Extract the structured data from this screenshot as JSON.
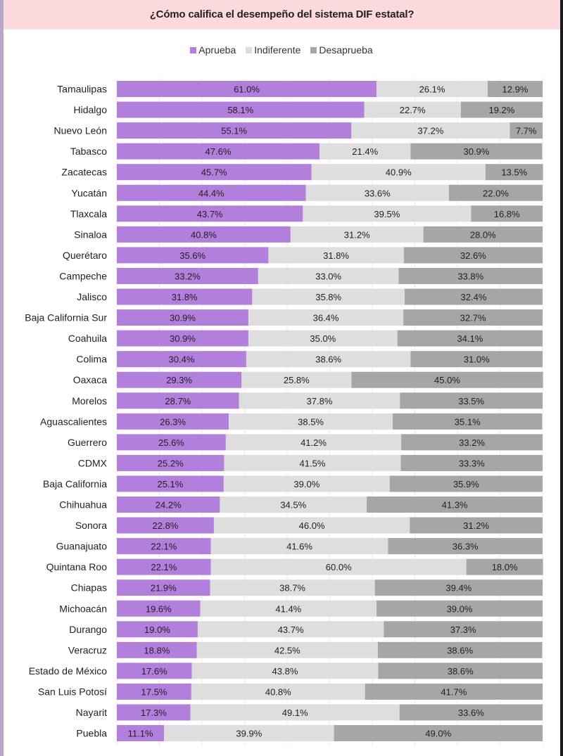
{
  "chart_data": {
    "type": "bar",
    "orientation": "horizontal",
    "stacked": true,
    "title": "¿Cómo califica el desempeño del sistema DIF estatal?",
    "xlabel": "",
    "ylabel": "",
    "xlim": [
      0,
      100
    ],
    "grid": true,
    "legend_position": "top-center",
    "unit": "%",
    "categories": [
      "Tamaulipas",
      "Hidalgo",
      "Nuevo León",
      "Tabasco",
      "Zacatecas",
      "Yucatán",
      "Tlaxcala",
      "Sinaloa",
      "Querétaro",
      "Campeche",
      "Jalisco",
      "Baja California Sur",
      "Coahuila",
      "Colima",
      "Oaxaca",
      "Morelos",
      "Aguascalientes",
      "Guerrero",
      "CDMX",
      "Baja California",
      "Chihuahua",
      "Sonora",
      "Guanajuato",
      "Quintana Roo",
      "Chiapas",
      "Michoacán",
      "Durango",
      "Veracruz",
      "Estado de México",
      "San Luis Potosí",
      "Nayarit",
      "Puebla"
    ],
    "series": [
      {
        "name": "Aprueba",
        "color": "#b37fdc",
        "values": [
          61.0,
          58.1,
          55.1,
          47.6,
          45.7,
          44.4,
          43.7,
          40.8,
          35.6,
          33.2,
          31.8,
          30.9,
          30.9,
          30.4,
          29.3,
          28.7,
          26.3,
          25.6,
          25.2,
          25.1,
          24.2,
          22.8,
          22.1,
          22.1,
          21.9,
          19.6,
          19.0,
          18.8,
          17.6,
          17.5,
          17.3,
          11.1
        ]
      },
      {
        "name": "Indiferente",
        "color": "#dedede",
        "values": [
          26.1,
          22.7,
          37.2,
          21.4,
          40.9,
          33.6,
          39.5,
          31.2,
          31.8,
          33.0,
          35.8,
          36.4,
          35.0,
          38.6,
          25.8,
          37.8,
          38.5,
          41.2,
          41.5,
          39.0,
          34.5,
          46.0,
          41.6,
          60.0,
          38.7,
          41.4,
          43.7,
          42.5,
          43.8,
          40.8,
          49.1,
          39.9
        ]
      },
      {
        "name": "Desaprueba",
        "color": "#a6a6a6",
        "values": [
          12.9,
          19.2,
          7.7,
          30.9,
          13.5,
          22.0,
          16.8,
          28.0,
          32.6,
          33.8,
          32.4,
          32.7,
          34.1,
          31.0,
          45.0,
          33.5,
          35.1,
          33.2,
          33.3,
          35.9,
          41.3,
          31.2,
          36.3,
          18.0,
          39.4,
          39.0,
          37.3,
          38.6,
          38.6,
          41.7,
          33.6,
          49.0
        ]
      }
    ]
  }
}
